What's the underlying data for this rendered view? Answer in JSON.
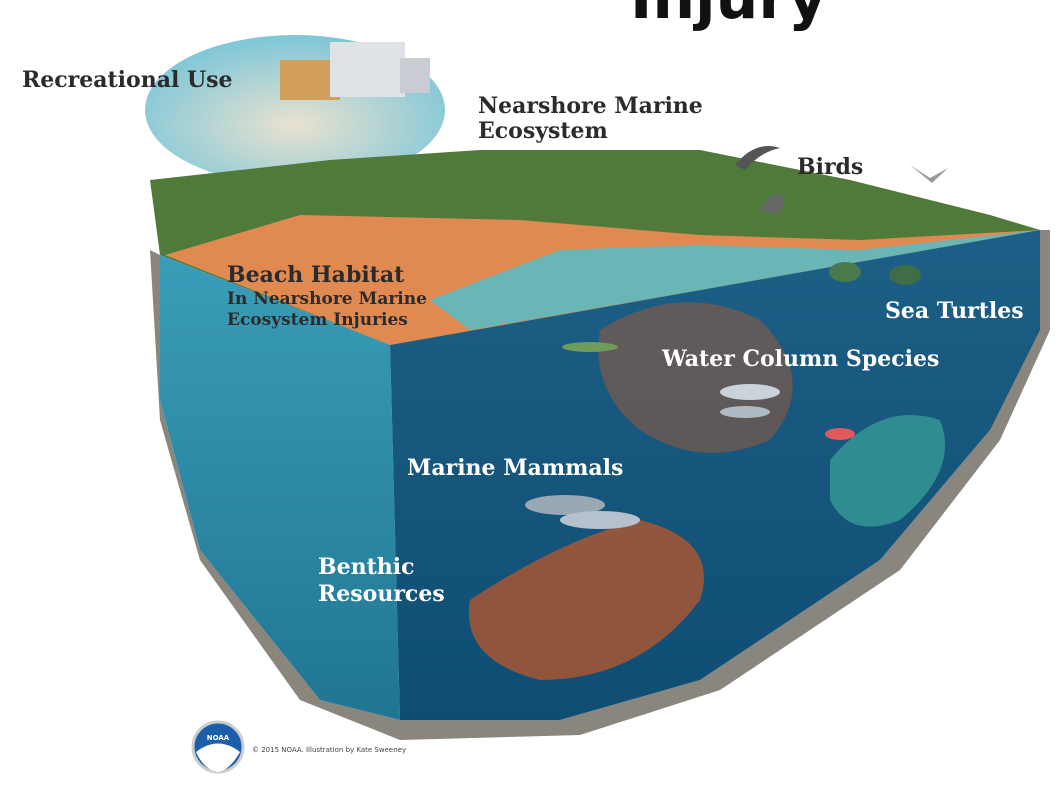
{
  "heading": "Injury",
  "labels": {
    "recreational_use": "Recreational Use",
    "nearshore": [
      "Nearshore Marine",
      "Ecosystem"
    ],
    "birds": "Birds",
    "beach_habitat": "Beach Habitat",
    "beach_sub": [
      "In Nearshore Marine",
      "Ecosystem Injuries"
    ],
    "sea_turtles": "Sea Turtles",
    "water_column": "Water Column Species",
    "marine_mammals": "Marine Mammals",
    "benthic": [
      "Benthic",
      "Resources"
    ]
  },
  "credit": "© 2015 NOAA.  Illustration by Kate Sweeney",
  "logo": "NOAA"
}
